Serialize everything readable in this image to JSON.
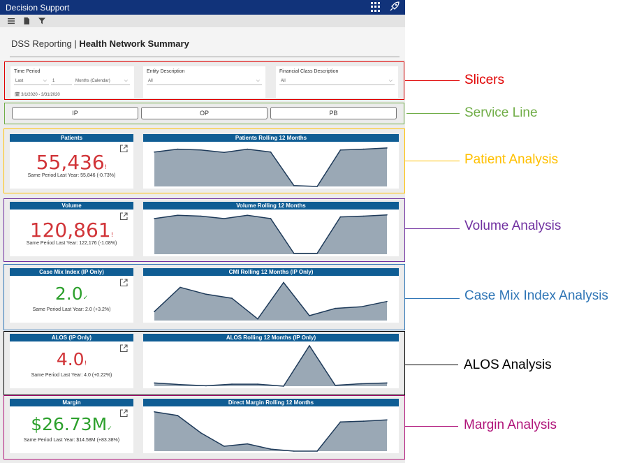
{
  "app": {
    "title": "Decision Support"
  },
  "page": {
    "title_prefix": "DSS Reporting | ",
    "title_main": "Health Network Summary"
  },
  "slicers": {
    "time_period": {
      "label": "Time Period",
      "mode": "Last",
      "count": "1",
      "unit": "Months (Calendar)",
      "range": "3/1/2020 - 3/31/2020"
    },
    "entity": {
      "label": "Entity Description",
      "value": "All"
    },
    "financial_class": {
      "label": "Financial Class Description",
      "value": "All"
    }
  },
  "service_lines": [
    "IP",
    "OP",
    "PB"
  ],
  "kpis": [
    {
      "title": "Patients",
      "value": "55,436",
      "sub": "Same Period Last Year: 55,846 (-0.73%)",
      "color": "#d13438",
      "mark": "!",
      "chart_title": "Patients Rolling 12 Months"
    },
    {
      "title": "Volume",
      "value": "120,861",
      "sub": "Same Period Last Year: 122,176 (-1.08%)",
      "color": "#d13438",
      "mark": "!",
      "chart_title": "Volume Rolling 12 Months"
    },
    {
      "title": "Case Mix Index (IP Only)",
      "value": "2.0",
      "sub": "Same Period Last Year: 2.0 (+3.2%)",
      "color": "#2ca02c",
      "mark": "✓",
      "chart_title": "CMI Rolling 12 Months (IP Only)"
    },
    {
      "title": "ALOS (IP Only)",
      "value": "4.0",
      "sub": "Same Period Last Year: 4.0 (+0.22%)",
      "color": "#d13438",
      "mark": "!",
      "chart_title": "ALOS Rolling 12 Months (IP Only)"
    },
    {
      "title": "Margin",
      "value": "$26.73M",
      "sub": "Same Period Last Year: $14.58M (+83.38%)",
      "color": "#2ca02c",
      "mark": "✓",
      "chart_title": "Direct Margin Rolling 12 Months"
    }
  ],
  "chart_data": [
    {
      "type": "area",
      "title": "Patients Rolling 12 Months",
      "values": [
        0.85,
        0.92,
        0.9,
        0.84,
        0.92,
        0.85,
        0.02,
        0.0,
        0.9,
        0.92,
        0.95
      ],
      "ylim": [
        0,
        1
      ]
    },
    {
      "type": "area",
      "title": "Volume Rolling 12 Months",
      "values": [
        0.88,
        0.96,
        0.94,
        0.88,
        0.96,
        0.88,
        0.02,
        0.02,
        0.92,
        0.94,
        0.97
      ],
      "ylim": [
        0,
        1
      ]
    },
    {
      "type": "area",
      "title": "CMI Rolling 12 Months (IP Only)",
      "values": [
        0.22,
        0.82,
        0.65,
        0.55,
        0.04,
        0.94,
        0.12,
        0.3,
        0.34,
        0.47
      ],
      "ylim": [
        0,
        1
      ]
    },
    {
      "type": "area",
      "title": "ALOS Rolling 12 Months (IP Only)",
      "values": [
        0.08,
        0.04,
        0.01,
        0.05,
        0.05,
        0.0,
        1.0,
        0.02,
        0.06,
        0.08
      ],
      "ylim": [
        0,
        1
      ]
    },
    {
      "type": "area",
      "title": "Direct Margin Rolling 12 Months",
      "values": [
        0.97,
        0.88,
        0.45,
        0.12,
        0.18,
        0.05,
        0.0,
        0.0,
        0.72,
        0.74,
        0.77
      ],
      "ylim": [
        0,
        1
      ]
    }
  ],
  "annotations": [
    {
      "label": "Slicers",
      "color": "#e00000"
    },
    {
      "label": "Service Line",
      "color": "#70ad47"
    },
    {
      "label": "Patient Analysis",
      "color": "#ffc000"
    },
    {
      "label": "Volume Analysis",
      "color": "#7030a0"
    },
    {
      "label": "Case Mix Index Analysis",
      "color": "#2e75b6"
    },
    {
      "label": "ALOS Analysis",
      "color": "#000000"
    },
    {
      "label": "Margin Analysis",
      "color": "#b0157a"
    }
  ]
}
